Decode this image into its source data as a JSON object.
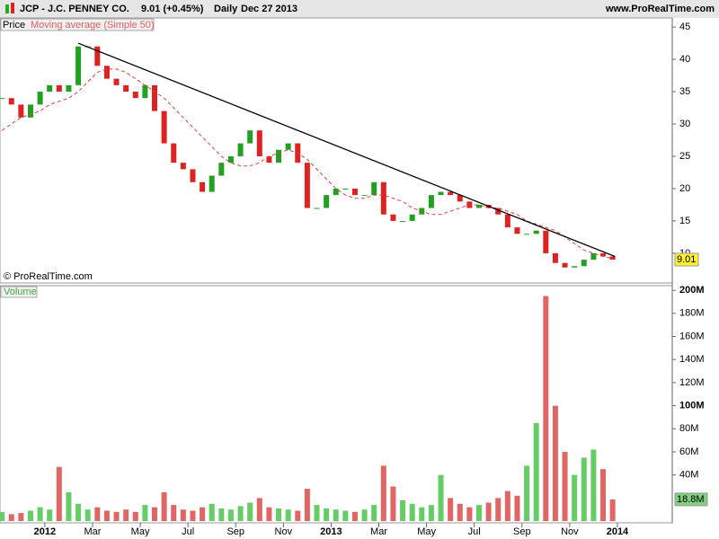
{
  "header": {
    "symbol": "JCP - J.C. PENNEY CO.",
    "last": "9.01 (+0.45%)",
    "period": "Daily",
    "date": "Dec 27 2013",
    "site": "www.ProRealTime.com"
  },
  "chart_data": [
    {
      "type": "line",
      "copyright": "© ProRealTime.com",
      "x": [
        -1.8,
        -1.4,
        -1,
        -0.6,
        -0.2,
        0.2,
        0.6,
        1,
        1.4,
        1.8,
        2.2,
        2.6,
        3,
        3.4,
        3.8,
        4.2,
        4.6,
        5,
        5.4,
        5.8,
        6.2,
        6.6,
        7,
        7.4,
        7.8,
        8.2,
        8.6,
        9,
        9.4,
        9.8,
        10.2,
        10.6,
        11,
        11.4,
        11.8,
        12.2,
        12.6,
        13,
        13.4,
        13.8,
        14.2,
        14.6,
        15,
        15.4,
        15.8,
        16.2,
        16.6,
        17,
        17.4,
        17.8,
        18.2,
        18.6,
        19,
        19.4,
        19.8,
        20.2,
        20.6,
        21,
        21.4,
        21.8,
        22.2,
        22.6,
        23,
        23.4,
        23.8
      ],
      "series": [
        {
          "name": "Price",
          "color": "#22a022",
          "down_color": "#dd2222",
          "values": [
            34,
            33,
            31,
            33,
            35,
            36,
            35,
            36,
            42,
            42,
            39,
            37,
            36,
            35,
            34,
            36,
            32,
            27,
            24,
            23,
            21,
            19.5,
            22,
            24,
            25,
            27,
            29,
            25,
            24,
            26,
            27,
            24,
            17,
            17,
            19,
            20,
            20,
            19,
            19,
            21,
            16,
            15,
            15,
            16,
            17,
            19,
            19.5,
            19,
            18,
            17,
            17.5,
            17,
            16,
            14,
            13,
            13,
            13.5,
            10,
            8.5,
            7.8,
            8,
            9,
            10,
            9.5,
            9.01
          ]
        },
        {
          "name": "Moving average (Simple 50)",
          "color": "#e04040",
          "values": [
            29,
            30,
            31,
            31.5,
            32,
            33,
            33.5,
            34,
            35,
            36.5,
            38,
            38.5,
            38.5,
            38,
            37,
            36,
            35,
            34,
            32.5,
            31,
            29.5,
            28,
            26.5,
            25,
            24,
            23.5,
            23.5,
            24,
            25,
            25.5,
            26,
            25.5,
            24.5,
            23,
            21.5,
            20,
            19,
            18.5,
            18.5,
            19,
            19,
            18.5,
            18,
            17,
            16.5,
            16,
            16,
            16.5,
            17,
            17.5,
            17.5,
            17,
            17,
            16.5,
            16,
            15,
            14.5,
            14,
            13.5,
            12.5,
            11.5,
            10.5,
            10,
            9.5,
            9.2
          ]
        }
      ],
      "trendline": {
        "x": [
          1.4,
          23.9
        ],
        "y": [
          42.5,
          9.5
        ]
      },
      "xlim": [
        -1.88,
        26.3
      ],
      "ylim": [
        5.4,
        46.4
      ],
      "yticks": [
        10,
        15,
        20,
        25,
        30,
        35,
        40,
        45
      ]
    },
    {
      "type": "bar",
      "series": [
        {
          "name": "Volume",
          "values": [
            8,
            6,
            7,
            9,
            12,
            10,
            47,
            25,
            15,
            10,
            12,
            9,
            8,
            10,
            8,
            14,
            12,
            25,
            14,
            10,
            9,
            12,
            15,
            11,
            10,
            13,
            16,
            20,
            12,
            11,
            10,
            9,
            28,
            14,
            11,
            10,
            9,
            8,
            10,
            14,
            48,
            30,
            18,
            15,
            12,
            14,
            40,
            20,
            15,
            12,
            14,
            16,
            20,
            26,
            22,
            48,
            85,
            195,
            100,
            60,
            40,
            55,
            62,
            45,
            18.8
          ]
        }
      ],
      "last_label": {
        "value": 18.8,
        "label": "18.8M"
      },
      "xlim": [
        -1.88,
        26.3
      ],
      "ylim": [
        -1.5,
        204
      ],
      "yticks": [
        {
          "value": 40,
          "label": "40M"
        },
        {
          "value": 60,
          "label": "60M"
        },
        {
          "value": 80,
          "label": "80M"
        },
        {
          "value": 100,
          "label": "100M"
        },
        {
          "value": 120,
          "label": "120M"
        },
        {
          "value": 140,
          "label": "140M"
        },
        {
          "value": 160,
          "label": "160M"
        },
        {
          "value": 180,
          "label": "180M"
        },
        {
          "value": 200,
          "label": "200M"
        }
      ],
      "xticks": [
        {
          "value": 0,
          "label": "2012"
        },
        {
          "value": 2,
          "label": "Mar"
        },
        {
          "value": 4,
          "label": "May"
        },
        {
          "value": 6,
          "label": "Jul"
        },
        {
          "value": 8,
          "label": "Sep"
        },
        {
          "value": 10,
          "label": "Nov"
        },
        {
          "value": 12,
          "label": "2013"
        },
        {
          "value": 14,
          "label": "Mar"
        },
        {
          "value": 16,
          "label": "May"
        },
        {
          "value": 18,
          "label": "Jul"
        },
        {
          "value": 20,
          "label": "Sep"
        },
        {
          "value": 22,
          "label": "Nov"
        },
        {
          "value": 24,
          "label": "2014"
        }
      ]
    }
  ]
}
